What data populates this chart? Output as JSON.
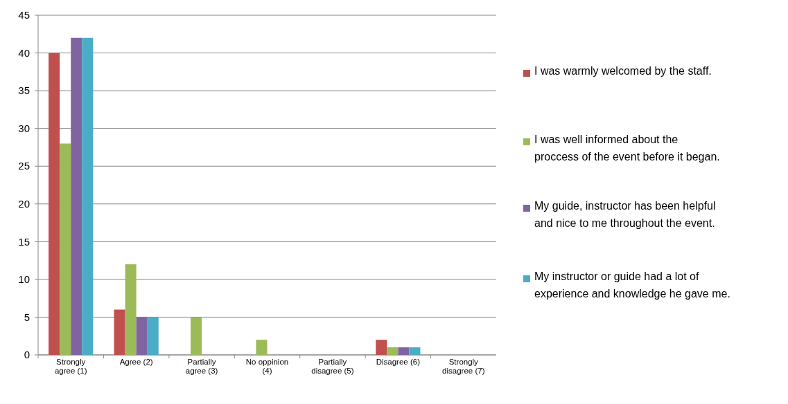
{
  "chart_data": {
    "type": "bar",
    "categories": [
      "Strongly agree (1)",
      "Agree (2)",
      "Partially agree (3)",
      "No oppinion (4)",
      "Partially disagree (5)",
      "Disagree (6)",
      "Strongly disagree (7)"
    ],
    "series": [
      {
        "name": "I was  warmly welcomed by the staff.",
        "color": "#c0504d",
        "values": [
          40,
          6,
          0,
          0,
          0,
          2,
          0
        ]
      },
      {
        "name": "I was  well informed about the proccess of the event before it began.",
        "color": "#9bbb59",
        "values": [
          28,
          12,
          5,
          2,
          0,
          1,
          0
        ]
      },
      {
        "name": "My guide, instructor has been helpful and nice to me throughout the event.",
        "color": "#8064a2",
        "values": [
          42,
          5,
          0,
          0,
          0,
          1,
          0
        ]
      },
      {
        "name": "My instructor or guide had a lot of experience and knowledge he gave me.",
        "color": "#4bacc6",
        "values": [
          42,
          5,
          0,
          0,
          0,
          1,
          0
        ]
      }
    ],
    "ylim": [
      0,
      45
    ],
    "yticks": [
      0,
      5,
      10,
      15,
      20,
      25,
      30,
      35,
      40,
      45
    ],
    "grid": "y",
    "legend": "right"
  }
}
